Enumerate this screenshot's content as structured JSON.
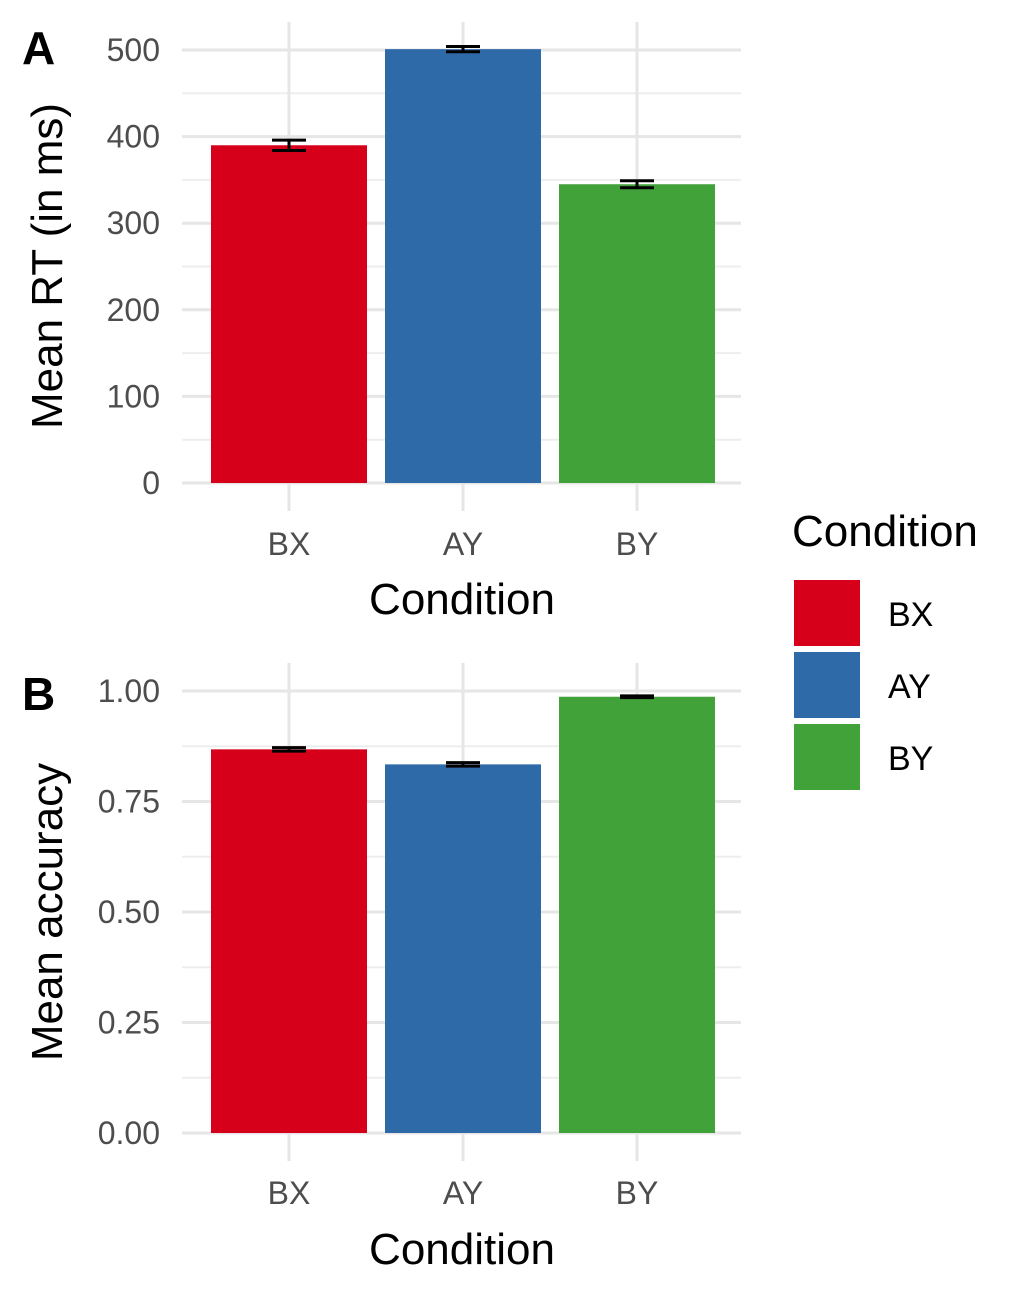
{
  "chart_data": [
    {
      "type": "bar",
      "panel_tag": "A",
      "categories": [
        "BX",
        "AY",
        "BY"
      ],
      "values": [
        390,
        501,
        345
      ],
      "error": [
        6,
        3,
        4
      ],
      "colors": [
        "#d7001a",
        "#2e6aa8",
        "#41a23a"
      ],
      "xlabel": "Condition",
      "ylabel": "Mean RT (in ms)",
      "ylim": [
        0,
        520
      ],
      "yticks": [
        0,
        100,
        200,
        300,
        400,
        500
      ],
      "ytick_labels": [
        "0",
        "100",
        "200",
        "300",
        "400",
        "500"
      ],
      "grid": true
    },
    {
      "type": "bar",
      "panel_tag": "B",
      "categories": [
        "BX",
        "AY",
        "BY"
      ],
      "values": [
        0.868,
        0.834,
        0.987
      ],
      "error": [
        0.004,
        0.004,
        0.002
      ],
      "colors": [
        "#d7001a",
        "#2e6aa8",
        "#41a23a"
      ],
      "xlabel": "Condition",
      "ylabel": "Mean accuracy",
      "ylim": [
        0,
        1.04
      ],
      "yticks": [
        0,
        0.25,
        0.5,
        0.75,
        1.0
      ],
      "ytick_labels": [
        "0.00",
        "0.25",
        "0.50",
        "0.75",
        "1.00"
      ],
      "grid": true
    }
  ],
  "legend": {
    "title": "Condition",
    "placement": "right",
    "items": [
      {
        "label": "BX",
        "color": "#d7001a"
      },
      {
        "label": "AY",
        "color": "#2e6aa8"
      },
      {
        "label": "BY",
        "color": "#41a23a"
      }
    ]
  }
}
